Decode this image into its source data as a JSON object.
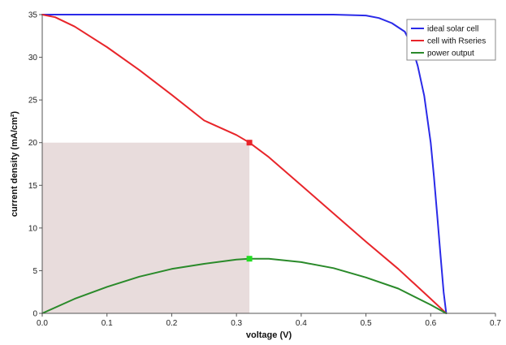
{
  "chart_data": {
    "type": "line",
    "xlabel": "voltage (V)",
    "ylabel": "current density (mA/cm²)",
    "xlim": [
      0,
      0.7
    ],
    "ylim": [
      0,
      35
    ],
    "x_ticks": [
      "0.0",
      "0.1",
      "0.2",
      "0.3",
      "0.4",
      "0.5",
      "0.6",
      "0.7"
    ],
    "x_tick_values": [
      0,
      0.1,
      0.2,
      0.3,
      0.4,
      0.5,
      0.6,
      0.7
    ],
    "y_ticks": [
      "0",
      "5",
      "10",
      "15",
      "20",
      "25",
      "30",
      "35"
    ],
    "y_tick_values": [
      0,
      5,
      10,
      15,
      20,
      25,
      30,
      35
    ],
    "grid": false,
    "legend_position": "top-right",
    "series": [
      {
        "name": "ideal solar cell",
        "color": "#2a2ae8",
        "x": [
          0,
          0.1,
          0.2,
          0.3,
          0.4,
          0.45,
          0.5,
          0.52,
          0.54,
          0.56,
          0.57,
          0.58,
          0.59,
          0.6,
          0.605,
          0.61,
          0.615,
          0.62,
          0.624
        ],
        "y": [
          35,
          35,
          35,
          35,
          35,
          35,
          34.9,
          34.6,
          34.0,
          33.0,
          31.5,
          29.0,
          25.5,
          20.0,
          16.0,
          11.5,
          7.0,
          2.5,
          0
        ]
      },
      {
        "name": "cell with Rseries",
        "color": "#e8252a",
        "x": [
          0,
          0.02,
          0.05,
          0.1,
          0.15,
          0.2,
          0.25,
          0.3,
          0.32,
          0.35,
          0.4,
          0.45,
          0.5,
          0.55,
          0.6,
          0.624
        ],
        "y": [
          35,
          34.7,
          33.6,
          31.2,
          28.5,
          25.6,
          22.6,
          20.9,
          20.0,
          18.3,
          15.0,
          11.7,
          8.4,
          5.2,
          1.7,
          0
        ]
      },
      {
        "name": "power output",
        "color": "#2a8a2a",
        "x": [
          0,
          0.05,
          0.1,
          0.15,
          0.2,
          0.25,
          0.3,
          0.32,
          0.35,
          0.4,
          0.45,
          0.5,
          0.55,
          0.6,
          0.624
        ],
        "y": [
          0,
          1.7,
          3.1,
          4.3,
          5.2,
          5.8,
          6.3,
          6.4,
          6.4,
          6.0,
          5.3,
          4.2,
          2.9,
          1.0,
          0
        ]
      }
    ],
    "markers": [
      {
        "series": "cell with Rseries",
        "x": 0.32,
        "y": 20,
        "color": "#e8252a"
      },
      {
        "series": "power output",
        "x": 0.32,
        "y": 6.4,
        "color": "#22dd22"
      }
    ],
    "shaded_region": {
      "x": [
        0,
        0.32
      ],
      "y": [
        0,
        20
      ],
      "color": "#e8dcdc"
    }
  }
}
